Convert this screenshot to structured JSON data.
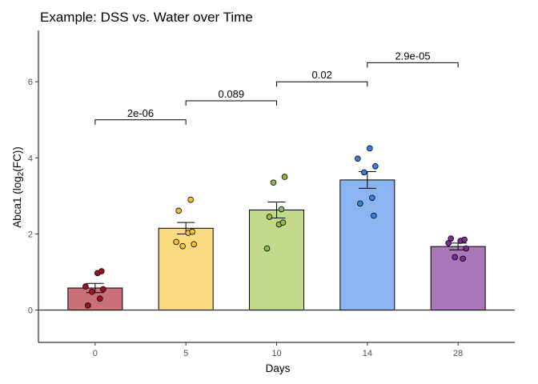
{
  "chart_data": {
    "type": "bar",
    "title": "Example: DSS vs. Water over Time",
    "xlabel": "Days",
    "ylabel": {
      "prefix": "Abca1 (log",
      "subscript": "2",
      "suffix": "(FC))"
    },
    "categories": [
      "0",
      "5",
      "10",
      "14",
      "28"
    ],
    "values": [
      0.58,
      2.15,
      2.63,
      3.42,
      1.67
    ],
    "errors": [
      0.12,
      0.15,
      0.21,
      0.22,
      0.09
    ],
    "colors": [
      "#c97079",
      "#fadb80",
      "#c4da8b",
      "#8ab5f0",
      "#a878b8"
    ],
    "point_colors": [
      "#a3111e",
      "#f0c238",
      "#8cbe46",
      "#3d7fe0",
      "#7a2e90"
    ],
    "points": [
      [
        0.12,
        0.3,
        0.48,
        0.55,
        0.62,
        0.97,
        1.02
      ],
      [
        1.68,
        1.73,
        1.79,
        2.03,
        2.06,
        2.61,
        2.9
      ],
      [
        1.62,
        2.25,
        2.3,
        2.45,
        2.65,
        3.35,
        3.5
      ],
      [
        2.48,
        2.8,
        2.95,
        3.62,
        3.78,
        3.98,
        4.25
      ],
      [
        1.35,
        1.39,
        1.62,
        1.76,
        1.82,
        1.85,
        1.88
      ]
    ],
    "yticks": [
      0,
      2,
      4,
      6
    ],
    "ylim": [
      -0.85,
      7.35
    ],
    "comparisons": [
      {
        "from": 0,
        "to": 1,
        "y": 5.0,
        "label": "2e-06"
      },
      {
        "from": 1,
        "to": 2,
        "y": 5.5,
        "label": "0.089"
      },
      {
        "from": 2,
        "to": 3,
        "y": 6.0,
        "label": "0.02"
      },
      {
        "from": 3,
        "to": 4,
        "y": 6.5,
        "label": "2.9e-05"
      }
    ],
    "grid": false,
    "legend": "none"
  }
}
